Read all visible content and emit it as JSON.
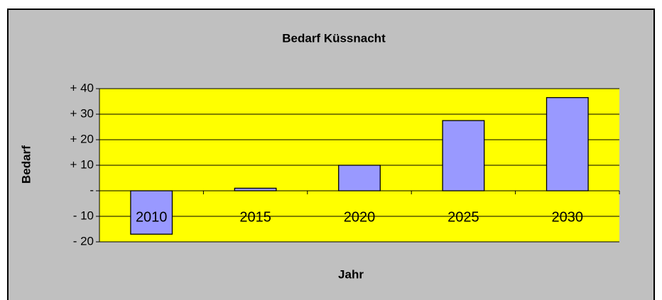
{
  "chart_data": {
    "type": "bar",
    "title": "Bedarf Küssnacht",
    "x_label": "Jahr",
    "y_label": "Bedarf",
    "categories": [
      "2010",
      "2015",
      "2020",
      "2025",
      "2030"
    ],
    "values": [
      -17,
      1,
      10,
      27.5,
      36.5
    ],
    "color": "#9999ff",
    "plot_background": "#ffff00",
    "ylim": [
      -20,
      40
    ],
    "yticks": [
      {
        "value": -20,
        "label": "- 20"
      },
      {
        "value": -10,
        "label": "- 10"
      },
      {
        "value": 0,
        "label": "-"
      },
      {
        "value": 10,
        "label": "+ 10"
      },
      {
        "value": 20,
        "label": "+ 20"
      },
      {
        "value": 30,
        "label": "+ 30"
      },
      {
        "value": 40,
        "label": "+ 40"
      }
    ],
    "grid": true
  }
}
